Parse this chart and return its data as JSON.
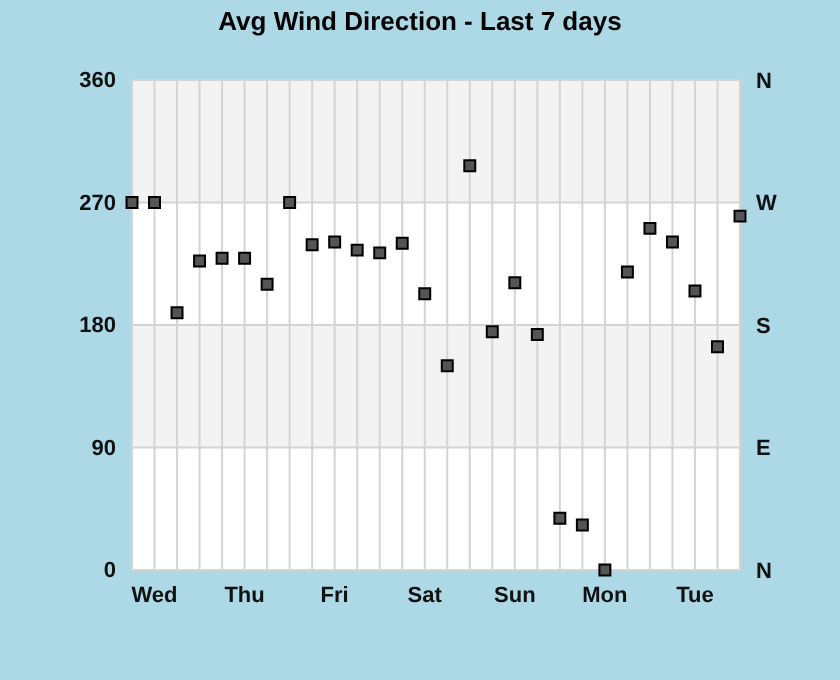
{
  "chart_data": {
    "type": "scatter",
    "title": "Avg Wind Direction - Last 7 days",
    "categories": [
      null,
      "Wed",
      null,
      null,
      null,
      "Thu",
      null,
      null,
      null,
      "Fri",
      null,
      null,
      null,
      "Sat",
      null,
      null,
      null,
      "Sun",
      null,
      null,
      null,
      "Mon",
      null,
      null,
      null,
      "Tue",
      null,
      null
    ],
    "series": [
      {
        "color": "#555555",
        "values": [
          270,
          270,
          189,
          227,
          229,
          229,
          210,
          270,
          239,
          241,
          235,
          233,
          240,
          203,
          150,
          297,
          175,
          211,
          173,
          38,
          33,
          0,
          219,
          251,
          241,
          205,
          164,
          260
        ]
      }
    ],
    "ylim": [
      0,
      360
    ],
    "yticks": [
      0,
      90,
      180,
      270,
      360
    ],
    "annotations": [
      "N",
      "E",
      "S",
      "W",
      "N"
    ],
    "bands": [
      {
        "axis": "y",
        "from": 90,
        "to": 180,
        "color": "#f3f3f3"
      },
      {
        "axis": "y",
        "from": 270,
        "to": 360,
        "color": "#f3f3f3"
      }
    ],
    "grid": true,
    "marker": "square"
  }
}
